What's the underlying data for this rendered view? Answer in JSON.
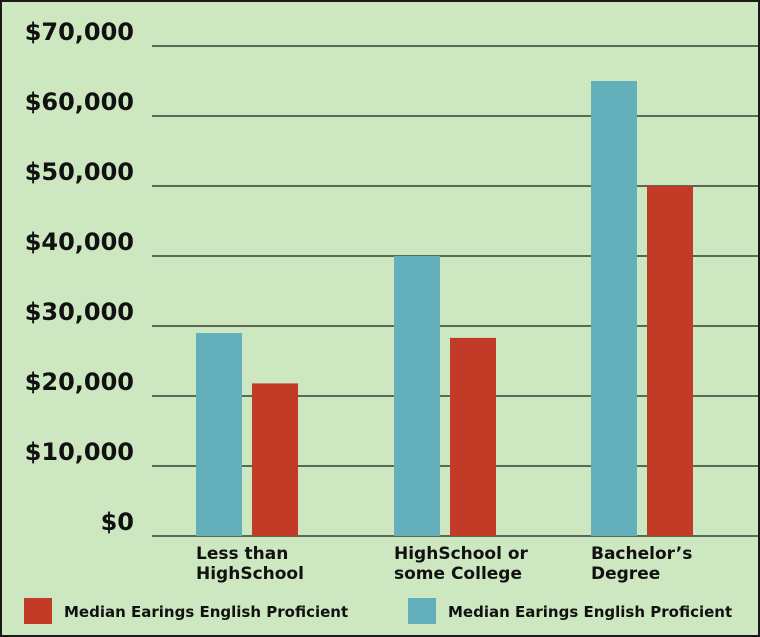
{
  "chart_data": {
    "type": "bar",
    "title": "",
    "xlabel": "",
    "ylabel": "",
    "ylim": [
      0,
      70000
    ],
    "y_ticks": [
      "$0",
      "$10,000",
      "$20,000",
      "$30,000",
      "$40,000",
      "$50,000",
      "$60,000",
      "$70,000"
    ],
    "y_tick_values": [
      0,
      10000,
      20000,
      30000,
      40000,
      50000,
      60000,
      70000
    ],
    "categories": [
      [
        "Less than",
        "HighSchool"
      ],
      [
        "HighSchool or",
        "some College"
      ],
      [
        "Bachelor’s",
        "Degree"
      ]
    ],
    "series": [
      {
        "name": "Median Earings English Proficient",
        "color": "#63afbb",
        "values": [
          29000,
          40000,
          65000
        ]
      },
      {
        "name": "Median Earings English Proficient",
        "color": "#c23b26",
        "values": [
          21800,
          28300,
          50000
        ]
      }
    ],
    "legend": [
      {
        "label": "Median Earings English Proficient",
        "color": "#c23b26"
      },
      {
        "label": "Median Earings English Proficient",
        "color": "#63afbb"
      }
    ],
    "legend_position": "bottom",
    "grid": true,
    "background": "#cde8c0"
  }
}
